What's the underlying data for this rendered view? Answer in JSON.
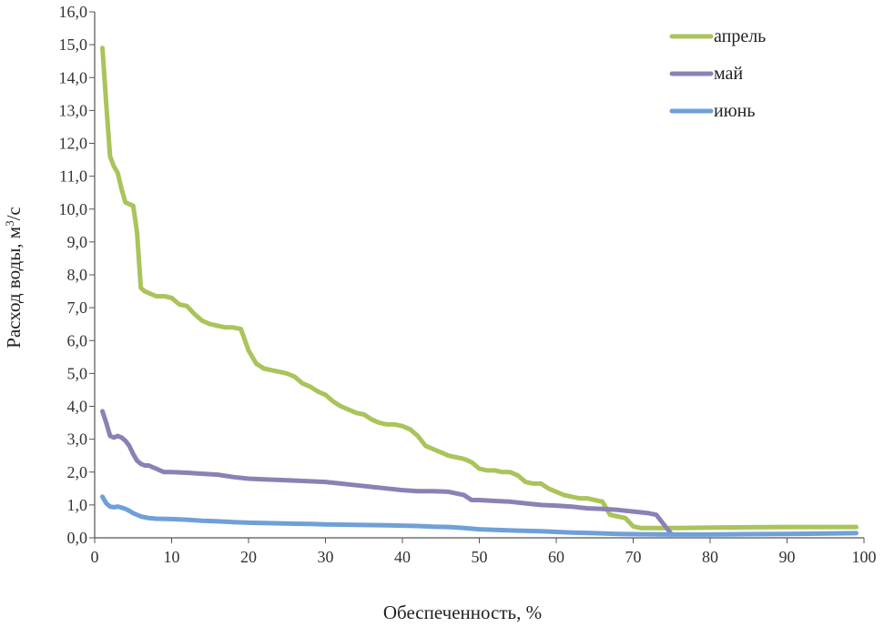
{
  "chart_data": {
    "type": "line",
    "title": "",
    "xlabel": "Обеспеченность, %",
    "ylabel_prefix": "Расход воды, м",
    "ylabel_sup": "3",
    "ylabel_suffix": "/с",
    "xlim": [
      0,
      100
    ],
    "ylim": [
      0,
      16
    ],
    "x_ticks": [
      "0",
      "10",
      "20",
      "30",
      "40",
      "50",
      "60",
      "70",
      "80",
      "90",
      "100"
    ],
    "x_tick_values": [
      0,
      10,
      20,
      30,
      40,
      50,
      60,
      70,
      80,
      90,
      100
    ],
    "y_ticks": [
      "0,0",
      "1,0",
      "2,0",
      "3,0",
      "4,0",
      "5,0",
      "6,0",
      "7,0",
      "8,0",
      "9,0",
      "10,0",
      "11,0",
      "12,0",
      "13,0",
      "14,0",
      "15,0",
      "16,0"
    ],
    "y_tick_values": [
      0,
      1,
      2,
      3,
      4,
      5,
      6,
      7,
      8,
      9,
      10,
      11,
      12,
      13,
      14,
      15,
      16
    ],
    "grid": false,
    "legend_position": "top-right",
    "series": [
      {
        "name": "апрель",
        "color": "#a9c45a",
        "x": [
          1,
          1.5,
          2,
          2.5,
          3,
          3.5,
          4,
          4.5,
          5,
          5.5,
          6,
          6.5,
          7,
          7.5,
          8,
          9,
          10,
          11,
          12,
          13,
          14,
          15,
          16,
          17,
          18,
          19,
          20,
          21,
          22,
          23,
          24,
          25,
          26,
          27,
          28,
          29,
          30,
          31,
          32,
          33,
          34,
          35,
          36,
          37,
          38,
          39,
          40,
          41,
          42,
          43,
          44,
          45,
          46,
          47,
          48,
          49,
          50,
          51,
          52,
          53,
          54,
          55,
          56,
          57,
          58,
          59,
          60,
          61,
          62,
          63,
          64,
          65,
          66,
          67,
          68,
          69,
          70,
          71,
          72,
          73,
          74,
          75,
          80,
          85,
          90,
          95,
          99
        ],
        "y": [
          14.9,
          13.2,
          11.6,
          11.3,
          11.1,
          10.6,
          10.2,
          10.15,
          10.1,
          9.3,
          7.6,
          7.5,
          7.45,
          7.4,
          7.35,
          7.35,
          7.3,
          7.1,
          7.05,
          6.8,
          6.6,
          6.5,
          6.45,
          6.4,
          6.4,
          6.35,
          5.7,
          5.3,
          5.15,
          5.1,
          5.05,
          5.0,
          4.9,
          4.7,
          4.6,
          4.45,
          4.35,
          4.15,
          4.0,
          3.9,
          3.8,
          3.75,
          3.6,
          3.5,
          3.45,
          3.45,
          3.4,
          3.3,
          3.1,
          2.8,
          2.7,
          2.6,
          2.5,
          2.45,
          2.4,
          2.3,
          2.1,
          2.05,
          2.05,
          2.0,
          2.0,
          1.9,
          1.7,
          1.65,
          1.65,
          1.5,
          1.4,
          1.3,
          1.25,
          1.2,
          1.2,
          1.15,
          1.1,
          0.7,
          0.65,
          0.6,
          0.35,
          0.3,
          0.3,
          0.3,
          0.3,
          0.3,
          0.31,
          0.32,
          0.33,
          0.33,
          0.33
        ]
      },
      {
        "name": "май",
        "color": "#8a82b4",
        "x": [
          1,
          1.5,
          2,
          2.5,
          3,
          3.5,
          4,
          4.5,
          5,
          5.5,
          6,
          6.5,
          7,
          8,
          9,
          10,
          12,
          14,
          16,
          18,
          20,
          22,
          25,
          28,
          30,
          32,
          34,
          36,
          38,
          40,
          42,
          44,
          46,
          47,
          48,
          49,
          50,
          52,
          54,
          56,
          58,
          60,
          62,
          64,
          66,
          68,
          70,
          72,
          73,
          74,
          75
        ],
        "y": [
          3.85,
          3.5,
          3.1,
          3.05,
          3.1,
          3.05,
          2.95,
          2.8,
          2.55,
          2.35,
          2.25,
          2.2,
          2.2,
          2.1,
          2.0,
          2.0,
          1.98,
          1.95,
          1.92,
          1.85,
          1.8,
          1.78,
          1.75,
          1.72,
          1.7,
          1.65,
          1.6,
          1.55,
          1.5,
          1.45,
          1.42,
          1.42,
          1.4,
          1.35,
          1.3,
          1.15,
          1.15,
          1.12,
          1.1,
          1.05,
          1.0,
          0.98,
          0.95,
          0.9,
          0.88,
          0.85,
          0.8,
          0.75,
          0.7,
          0.4,
          0.1
        ]
      },
      {
        "name": "июнь",
        "color": "#6fa0d8",
        "x": [
          1,
          1.5,
          2,
          2.5,
          3,
          3.5,
          4,
          4.5,
          5,
          6,
          7,
          8,
          10,
          12,
          14,
          16,
          18,
          20,
          22,
          24,
          26,
          28,
          30,
          32,
          35,
          38,
          40,
          42,
          44,
          46,
          48,
          50,
          52,
          55,
          58,
          60,
          62,
          65,
          68,
          70,
          75,
          80,
          85,
          90,
          95,
          99
        ],
        "y": [
          1.25,
          1.05,
          0.95,
          0.93,
          0.95,
          0.92,
          0.88,
          0.82,
          0.75,
          0.65,
          0.6,
          0.58,
          0.57,
          0.55,
          0.52,
          0.5,
          0.48,
          0.46,
          0.45,
          0.44,
          0.43,
          0.42,
          0.41,
          0.4,
          0.39,
          0.38,
          0.37,
          0.36,
          0.34,
          0.33,
          0.3,
          0.26,
          0.24,
          0.22,
          0.2,
          0.18,
          0.16,
          0.14,
          0.12,
          0.11,
          0.1,
          0.1,
          0.11,
          0.12,
          0.13,
          0.14
        ]
      }
    ]
  }
}
